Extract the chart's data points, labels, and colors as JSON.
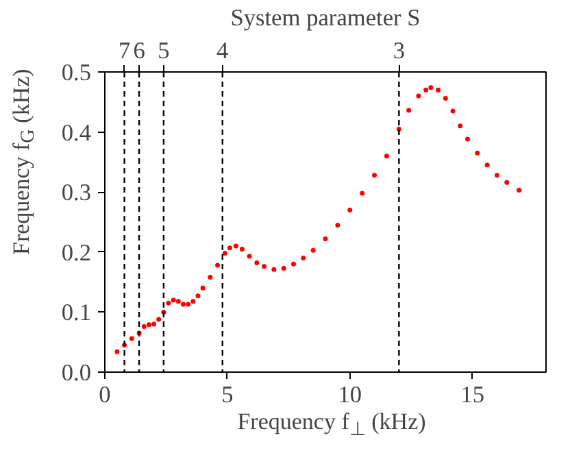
{
  "chart_data": {
    "type": "scatter",
    "x2label": "System parameter S",
    "xlabel": "Frequency f$_{⊥}$ (kHz)",
    "ylabel": "Frequency f$_{G}$ (kHz)",
    "x": [
      0.5,
      0.8,
      1.1,
      1.4,
      1.6,
      1.8,
      2.0,
      2.2,
      2.4,
      2.6,
      2.8,
      3.0,
      3.2,
      3.4,
      3.6,
      3.8,
      4.0,
      4.3,
      4.6,
      4.9,
      5.1,
      5.35,
      5.6,
      5.9,
      6.2,
      6.5,
      6.9,
      7.3,
      7.7,
      8.1,
      8.5,
      9.0,
      9.5,
      10.0,
      10.5,
      11.0,
      11.5,
      12.0,
      12.4,
      12.8,
      13.1,
      13.3,
      13.6,
      13.9,
      14.2,
      14.5,
      14.8,
      15.2,
      15.6,
      16.0,
      16.4,
      16.9
    ],
    "series": [
      {
        "color": "#ff0000",
        "values": [
          0.034,
          0.045,
          0.056,
          0.065,
          0.076,
          0.079,
          0.08,
          0.088,
          0.1,
          0.115,
          0.12,
          0.118,
          0.113,
          0.113,
          0.118,
          0.127,
          0.14,
          0.158,
          0.178,
          0.198,
          0.207,
          0.21,
          0.205,
          0.193,
          0.182,
          0.176,
          0.171,
          0.173,
          0.18,
          0.19,
          0.203,
          0.222,
          0.245,
          0.27,
          0.298,
          0.328,
          0.36,
          0.405,
          0.436,
          0.46,
          0.47,
          0.474,
          0.47,
          0.456,
          0.435,
          0.41,
          0.388,
          0.365,
          0.345,
          0.328,
          0.316,
          0.303
        ]
      }
    ],
    "xlim": [
      0,
      18
    ],
    "ylim": [
      0,
      0.5
    ],
    "xticks": [
      0,
      5,
      10,
      15
    ],
    "yticks": [
      {
        "value": 0,
        "label": "0.0"
      },
      0.1,
      0.2,
      0.3,
      0.4,
      0.5
    ],
    "ref_lines": [
      {
        "axis": "x",
        "value": 0.8,
        "color": "#000000",
        "line_style": "dashed"
      },
      {
        "axis": "x",
        "value": 1.4,
        "color": "#000000",
        "line_style": "dashed"
      },
      {
        "axis": "x",
        "value": 2.4,
        "color": "#000000",
        "line_style": "dashed"
      },
      {
        "axis": "x",
        "value": 4.8,
        "color": "#000000",
        "line_style": "dashed"
      },
      {
        "axis": "x",
        "value": 12.0,
        "color": "#000000",
        "line_style": "dashed"
      }
    ],
    "annotations": [
      {
        "text": "7",
        "x": 0.8
      },
      {
        "text": "6",
        "x": 1.4
      },
      {
        "text": "5",
        "x": 2.4
      },
      {
        "text": "4",
        "x": 4.8
      },
      {
        "text": "3",
        "x": 12.0
      }
    ],
    "marker": "circle",
    "grid": false
  }
}
